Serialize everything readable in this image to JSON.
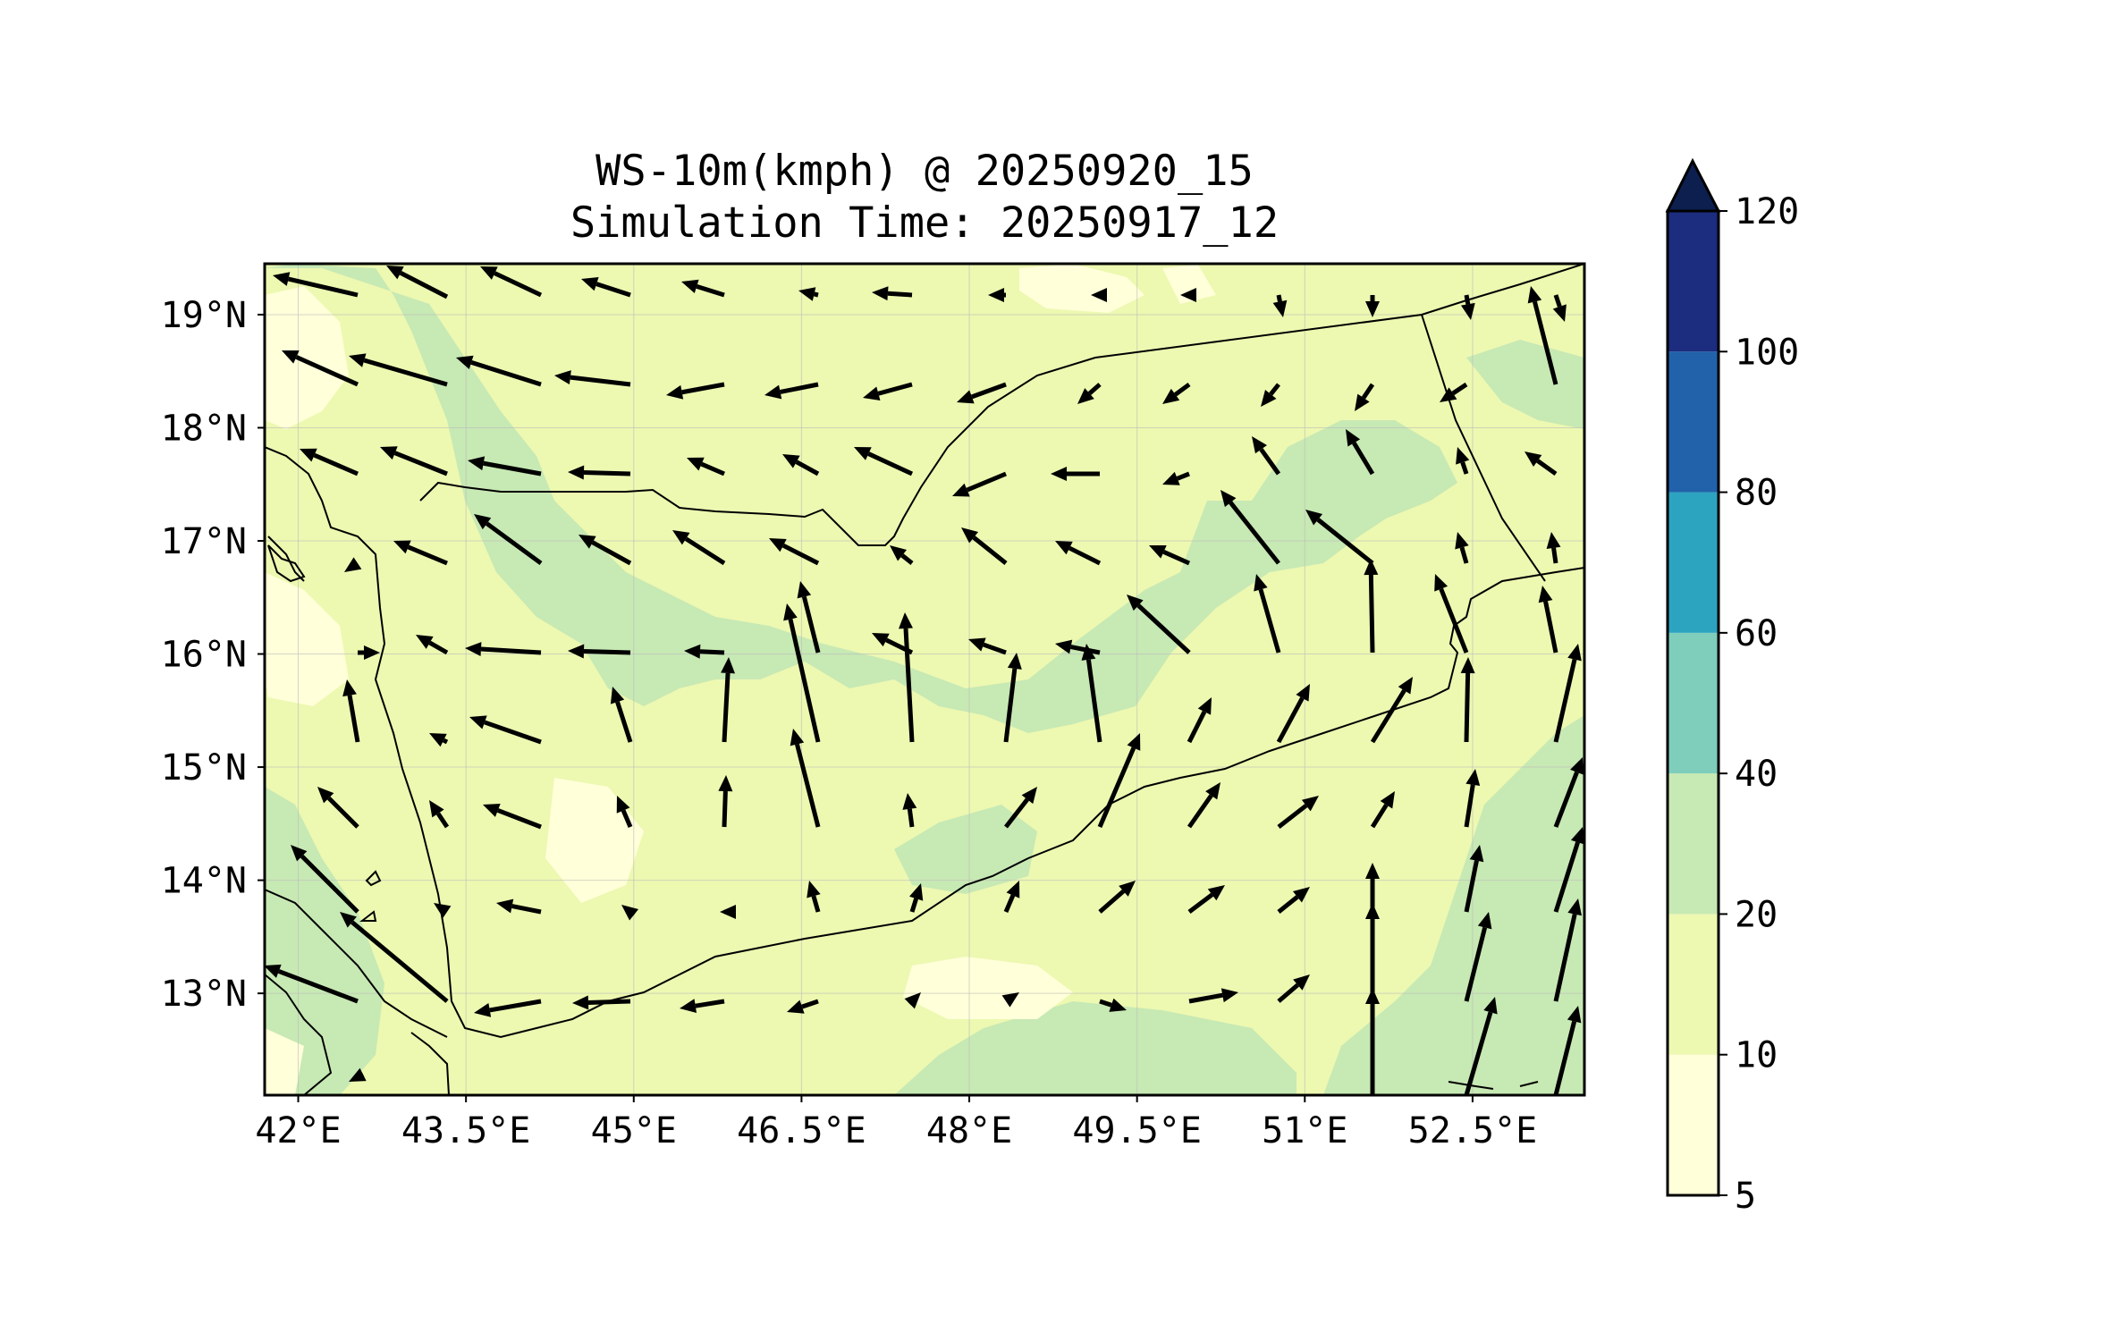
{
  "title": {
    "line1": "WS-10m(kmph) @ 20250920_15",
    "line2": "Simulation Time: 20250917_12"
  },
  "map": {
    "lon_range": [
      41.7,
      53.5
    ],
    "lat_range": [
      12.1,
      19.45
    ],
    "x_ticks": [
      {
        "value": 42.0,
        "label": "42°E"
      },
      {
        "value": 43.5,
        "label": "43.5°E"
      },
      {
        "value": 45.0,
        "label": "45°E"
      },
      {
        "value": 46.5,
        "label": "46.5°E"
      },
      {
        "value": 48.0,
        "label": "48°E"
      },
      {
        "value": 49.5,
        "label": "49.5°E"
      },
      {
        "value": 51.0,
        "label": "51°E"
      },
      {
        "value": 52.5,
        "label": "52.5°E"
      }
    ],
    "y_ticks": [
      {
        "value": 19,
        "label": "19°N"
      },
      {
        "value": 18,
        "label": "18°N"
      },
      {
        "value": 17,
        "label": "17°N"
      },
      {
        "value": 16,
        "label": "16°N"
      },
      {
        "value": 15,
        "label": "15°N"
      },
      {
        "value": 14,
        "label": "14°N"
      },
      {
        "value": 13,
        "label": "13°N"
      }
    ],
    "grid": true,
    "fill_colors": {
      "5-10": "#ffffd9",
      "10-20": "#edf8b1",
      "20-40": "#c7e9b4",
      "40-60": "#7fcdbb",
      "60-80": "#2ca4c0",
      "80-100": "#2162aa",
      "100-120": "#1c2c7f",
      "over": "#0c1f4f"
    }
  },
  "colorbar": {
    "ticks": [
      {
        "value": 5,
        "label": "5"
      },
      {
        "value": 10,
        "label": "10"
      },
      {
        "value": 20,
        "label": "20"
      },
      {
        "value": 40,
        "label": "40"
      },
      {
        "value": 60,
        "label": "60"
      },
      {
        "value": 80,
        "label": "80"
      },
      {
        "value": 100,
        "label": "100"
      },
      {
        "value": 120,
        "label": "120"
      }
    ],
    "segments": [
      {
        "range": "5-10",
        "color": "#ffffd9"
      },
      {
        "range": "10-20",
        "color": "#edf8b1"
      },
      {
        "range": "20-40",
        "color": "#c7e9b4"
      },
      {
        "range": "40-60",
        "color": "#7fcdbb"
      },
      {
        "range": "60-80",
        "color": "#2ca4c0"
      },
      {
        "range": "80-100",
        "color": "#2162aa"
      },
      {
        "range": "100-120",
        "color": "#1c2c7f"
      }
    ],
    "extend_color": "#0c1f4f"
  }
}
